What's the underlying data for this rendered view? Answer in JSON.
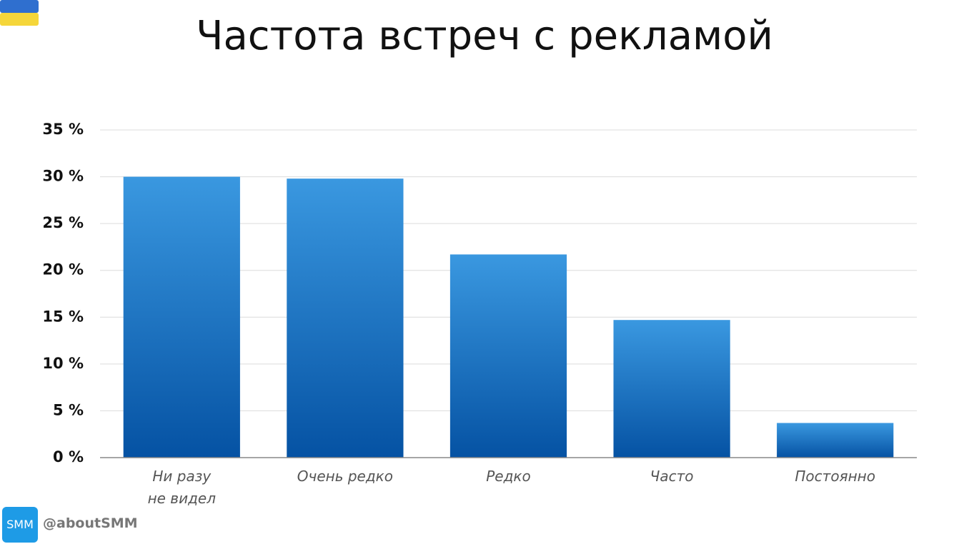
{
  "chart_data": {
    "type": "bar",
    "title": "Частота встреч с рекламой",
    "categories": [
      "Ни разу\nне видел",
      "Очень редко",
      "Редко",
      "Часто",
      "Постоянно"
    ],
    "values": [
      30,
      29.8,
      21.7,
      14.7,
      3.7
    ],
    "color": "#3a98e0",
    "ylim": [
      0,
      35
    ],
    "yticks": [
      {
        "value": 0,
        "label": "0 %"
      },
      {
        "value": 5,
        "label": "5 %"
      },
      {
        "value": 10,
        "label": "10 %"
      },
      {
        "value": 15,
        "label": "15 %"
      },
      {
        "value": 20,
        "label": "20 %"
      },
      {
        "value": 25,
        "label": "25 %"
      },
      {
        "value": 30,
        "label": "30 %"
      },
      {
        "value": 35,
        "label": "35 %"
      }
    ],
    "grid": true
  },
  "footer": {
    "badge": "SMM",
    "handle": "@aboutSMM"
  }
}
